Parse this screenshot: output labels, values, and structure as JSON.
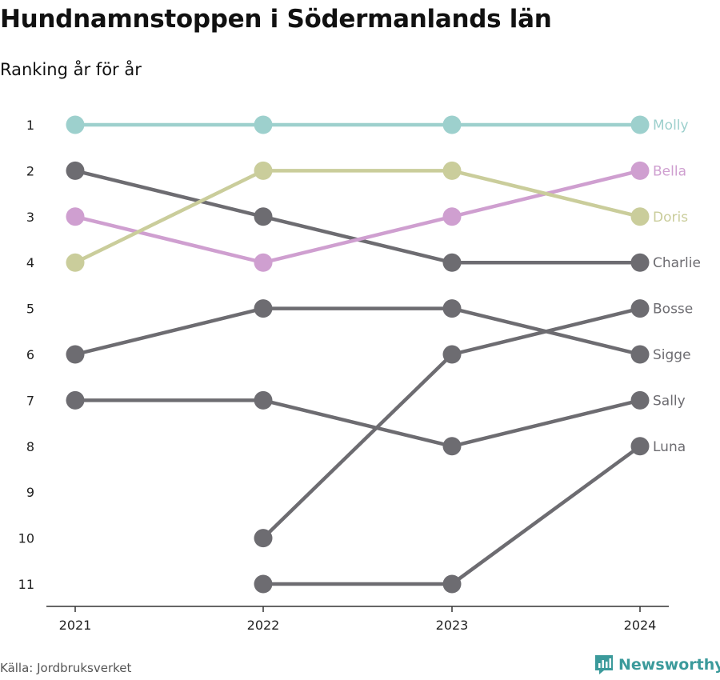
{
  "title": "Hundnamnstoppen i Södermanlands län",
  "subtitle": "Ranking år för år",
  "source": "Källa: Jordbruksverket",
  "brand": {
    "name": "Newsworthy"
  },
  "chart_data": {
    "type": "line",
    "subtype": "bump",
    "title": "Hundnamnstoppen i Södermanlands län",
    "subtitle": "Ranking år för år",
    "x": [
      "2021",
      "2022",
      "2023",
      "2024"
    ],
    "y_ticks": [
      1,
      2,
      3,
      4,
      5,
      6,
      7,
      8,
      9,
      10,
      11
    ],
    "ylim": [
      1,
      11
    ],
    "y_inverted": true,
    "grid": false,
    "series": [
      {
        "name": "Molly",
        "values": [
          1,
          1,
          1,
          1
        ],
        "color": "#9dd0cd"
      },
      {
        "name": "Bella",
        "values": [
          3,
          4,
          3,
          2
        ],
        "color": "#cf9fd0"
      },
      {
        "name": "Doris",
        "values": [
          4,
          2,
          2,
          3
        ],
        "color": "#cacd9b"
      },
      {
        "name": "Charlie",
        "values": [
          2,
          3,
          4,
          4
        ],
        "color": "#6d6c71"
      },
      {
        "name": "Bosse",
        "values": [
          null,
          10,
          6,
          5
        ],
        "color": "#6d6c71"
      },
      {
        "name": "Sigge",
        "values": [
          6,
          5,
          5,
          6
        ],
        "color": "#6d6c71"
      },
      {
        "name": "Sally",
        "values": [
          7,
          7,
          8,
          7
        ],
        "color": "#6d6c71"
      },
      {
        "name": "Luna",
        "values": [
          null,
          11,
          11,
          8
        ],
        "color": "#6d6c71"
      }
    ]
  }
}
